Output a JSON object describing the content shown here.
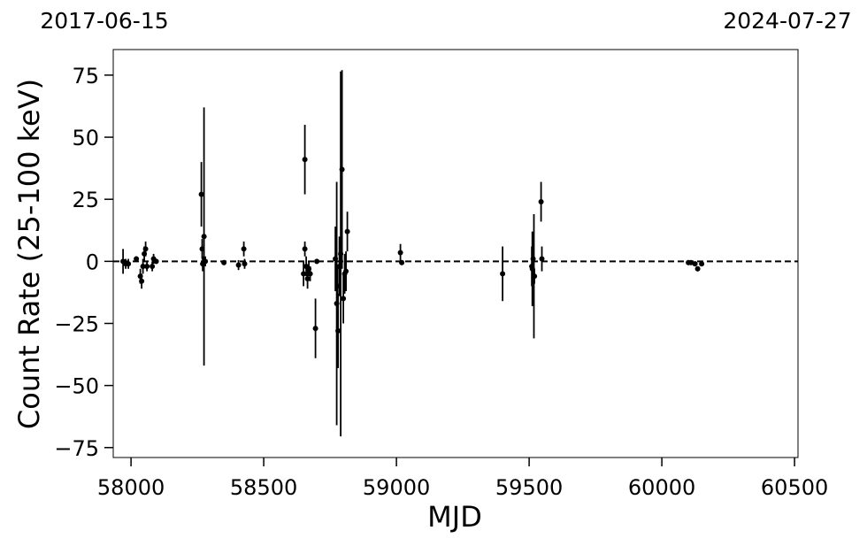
{
  "chart_data": {
    "type": "errorbar",
    "top_left_label": "2017-06-15",
    "top_right_label": "2024-07-27",
    "xlabel": "MJD",
    "ylabel": "Count Rate (25-100 keV)",
    "xlim": [
      57933,
      60513
    ],
    "ylim": [
      -79,
      85.3
    ],
    "xticks": [
      58000,
      58500,
      59000,
      59500,
      60000,
      60500
    ],
    "yticks": [
      {
        "value": -75,
        "label": "−75"
      },
      {
        "value": -50,
        "label": "−50"
      },
      {
        "value": -25,
        "label": "−25"
      },
      0,
      25,
      50,
      75
    ],
    "hline": 0,
    "series": [
      {
        "color": "#000000",
        "x": [
          57970,
          57980,
          57990,
          58020,
          58035,
          58040,
          58045,
          58050,
          58055,
          58060,
          58080,
          58085,
          58095,
          58265,
          58268,
          58270,
          58275,
          58280,
          58350,
          58405,
          58425,
          58428,
          58650,
          58655,
          58655,
          58660,
          58665,
          58670,
          58675,
          58695,
          58700,
          58770,
          58775,
          58778,
          58780,
          58785,
          58790,
          58795,
          58800,
          58805,
          58810,
          58815,
          59015,
          59020,
          59400,
          59510,
          59512,
          59515,
          59518,
          59520,
          59545,
          59548,
          60100,
          60110,
          60125,
          60135,
          60150
        ],
        "values": [
          0,
          -1,
          -1,
          1,
          -6,
          -8,
          -2,
          3,
          5,
          -2,
          -2,
          1,
          0,
          27,
          5,
          -1,
          10,
          0,
          -0.5,
          -1.5,
          5,
          -1,
          -5,
          41,
          5,
          -2,
          -7,
          -3,
          -5,
          -27,
          0,
          1,
          -17,
          -10,
          -28,
          -2,
          3,
          37,
          -15,
          -5,
          -4,
          12,
          3.5,
          -0.5,
          -5,
          -2,
          -3,
          1,
          -6,
          -6,
          24,
          1,
          -0.5,
          -0.5,
          -1,
          -3,
          -1
        ],
        "errors": [
          5,
          2,
          2,
          1,
          3,
          3,
          3,
          3,
          3,
          2,
          2,
          2,
          1,
          13,
          4,
          3,
          52,
          2,
          1,
          2,
          3,
          2,
          5,
          14,
          3,
          4,
          4,
          3,
          3,
          12,
          1,
          13,
          49,
          8,
          15,
          12,
          73.5,
          40,
          10,
          8,
          8,
          8,
          3.5,
          1,
          11,
          8,
          15,
          10,
          25,
          3,
          8,
          5,
          1,
          1,
          1,
          1,
          1
        ]
      }
    ]
  }
}
